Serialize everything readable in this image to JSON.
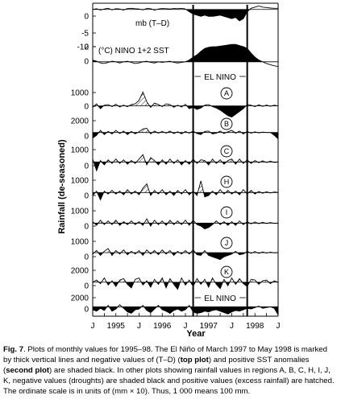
{
  "figure": {
    "y_axis_label": "Rainfall (de-seasoned)",
    "x_axis_label": "Year",
    "x_tick_labels": [
      "J",
      "1995",
      "J",
      "1996",
      "J",
      "1997",
      "J",
      "1998",
      "J"
    ],
    "el_nino_label": "EL NINO",
    "panels": [
      {
        "label": "mb (T–D)",
        "ticks": [
          "0",
          "-5",
          "-10"
        ]
      },
      {
        "label": "(°C) NINO 1+2 SST",
        "ticks": [
          "2",
          "0"
        ]
      },
      {
        "label": "A",
        "ticks": [
          "1000",
          "0"
        ]
      },
      {
        "label": "B",
        "ticks": [
          "2000",
          "0"
        ]
      },
      {
        "label": "C",
        "ticks": [
          "1000",
          "0"
        ]
      },
      {
        "label": "H",
        "ticks": [
          "1000",
          "0"
        ]
      },
      {
        "label": "I",
        "ticks": [
          "1000",
          "0"
        ]
      },
      {
        "label": "J",
        "ticks": [
          "1000",
          "0"
        ]
      },
      {
        "label": "K",
        "ticks": [
          "2000",
          "0"
        ]
      },
      {
        "label": "",
        "ticks": [
          "2000",
          "0"
        ]
      }
    ]
  },
  "caption": {
    "fig_label": "Fig. 7",
    "text1": ". Plots of monthly values for 1995–98. The El Niño of March 1997 to May 1998 is marked by thick vertical lines and negative values of (T–D) (",
    "bold1": "top plot",
    "text2": ") and positive SST anomalies (",
    "bold2": "second plot",
    "text3": ") are shaded black. In other plots showing rainfall values in regions A, B, C, H, I, J, K, negative values (droughts) are shaded black and positive values (excess rainfall) are hatched. The ordinate scale is in units of (mm × 10). Thus, 1 000 means 100 mm."
  },
  "chart_data": {
    "type": "area",
    "title": "",
    "xlabel": "Year",
    "ylabel": "Rainfall (de-seasoned)",
    "x_months": [
      "1995-01",
      "1995-02",
      "1995-03",
      "1995-04",
      "1995-05",
      "1995-06",
      "1995-07",
      "1995-08",
      "1995-09",
      "1995-10",
      "1995-11",
      "1995-12",
      "1996-01",
      "1996-02",
      "1996-03",
      "1996-04",
      "1996-05",
      "1996-06",
      "1996-07",
      "1996-08",
      "1996-09",
      "1996-10",
      "1996-11",
      "1996-12",
      "1997-01",
      "1997-02",
      "1997-03",
      "1997-04",
      "1997-05",
      "1997-06",
      "1997-07",
      "1997-08",
      "1997-09",
      "1997-10",
      "1997-11",
      "1997-12",
      "1998-01",
      "1998-02",
      "1998-03",
      "1998-04",
      "1998-05",
      "1998-06",
      "1998-07",
      "1998-08",
      "1998-09",
      "1998-10",
      "1998-11",
      "1998-12",
      "1999-01"
    ],
    "el_nino": {
      "start": "1997-03",
      "end": "1998-05"
    },
    "series": [
      {
        "name": "mb (T–D)",
        "ylim": [
          -12,
          2
        ],
        "values": [
          0,
          0.3,
          -0.3,
          0.2,
          0.5,
          -0.2,
          0.3,
          0.2,
          -0.3,
          0.4,
          0.5,
          0.3,
          0.2,
          -0.2,
          0.4,
          0.3,
          -0.3,
          0.2,
          0.4,
          0.3,
          0.2,
          0.4,
          0.3,
          0.5,
          0.2,
          -1,
          -2,
          -2.5,
          -3,
          -2.5,
          -3,
          -3,
          -2.8,
          -2.5,
          -3,
          -3.5,
          -4,
          -3.5,
          -5,
          -4,
          -1,
          0.5,
          1,
          1.5,
          1,
          0.8,
          0.6,
          0.5,
          0.5
        ]
      },
      {
        "name": "NINO 1+2 SST",
        "ylim": [
          -1,
          4
        ],
        "values": [
          0.3,
          0.1,
          -0.2,
          -0.3,
          -0.1,
          0.1,
          0,
          -0.2,
          0,
          0.1,
          -0.1,
          -0.3,
          -0.2,
          0,
          0.1,
          -0.1,
          -0.2,
          0,
          -0.1,
          0,
          0.1,
          -0.1,
          -0.2,
          -0.1,
          0,
          0.3,
          0.8,
          1.2,
          1.8,
          2.3,
          2.5,
          2.6,
          2.6,
          2.7,
          2.8,
          2.9,
          3,
          3,
          2.8,
          2.6,
          2.3,
          1.5,
          0.8,
          0.3,
          0,
          -0.3,
          -0.5,
          -0.7,
          -0.8
        ]
      },
      {
        "name": "A",
        "ylim": [
          -600,
          1600
        ],
        "values": [
          -100,
          150,
          -200,
          50,
          100,
          -50,
          120,
          -80,
          50,
          -60,
          100,
          150,
          400,
          1000,
          300,
          -100,
          200,
          100,
          -50,
          150,
          100,
          -100,
          50,
          -80,
          120,
          -200,
          -100,
          -250,
          -150,
          50,
          100,
          -50,
          -150,
          -300,
          -500,
          -700,
          -800,
          -600,
          -400,
          -200,
          100,
          50,
          -50,
          80,
          -40,
          60,
          -30,
          50,
          0
        ]
      },
      {
        "name": "B",
        "ylim": [
          -1300,
          2600
        ],
        "values": [
          -800,
          -400,
          300,
          -300,
          150,
          -200,
          300,
          -150,
          200,
          -300,
          150,
          -200,
          100,
          500,
          600,
          -200,
          200,
          -100,
          150,
          -100,
          200,
          -150,
          100,
          -200,
          150,
          -100,
          200,
          -150,
          -300,
          150,
          200,
          -200,
          -100,
          200,
          -150,
          100,
          300,
          -100,
          200,
          -200,
          150,
          -100,
          100,
          -50,
          60,
          0,
          0,
          -400,
          -900
        ]
      },
      {
        "name": "C",
        "ylim": [
          -700,
          1400
        ],
        "values": [
          200,
          -600,
          100,
          -200,
          150,
          -100,
          200,
          -100,
          150,
          -150,
          100,
          -100,
          200,
          500,
          -200,
          300,
          100,
          -200,
          150,
          -150,
          200,
          -100,
          150,
          -200,
          100,
          -150,
          200,
          -100,
          150,
          100,
          -200,
          200,
          -100,
          150,
          -150,
          100,
          200,
          -150,
          200,
          -100,
          150,
          -100,
          100,
          -50,
          80,
          -40,
          60,
          -30,
          0
        ]
      },
      {
        "name": "H",
        "ylim": [
          -700,
          1400
        ],
        "values": [
          -200,
          100,
          -500,
          100,
          -100,
          150,
          -100,
          100,
          -150,
          200,
          -100,
          100,
          -150,
          300,
          600,
          -200,
          150,
          -100,
          200,
          -150,
          100,
          -200,
          150,
          -100,
          200,
          -150,
          100,
          -200,
          800,
          -300,
          -200,
          100,
          -150,
          200,
          -100,
          150,
          -100,
          100,
          -150,
          200,
          -100,
          150,
          -100,
          80,
          -50,
          60,
          -30,
          40,
          0
        ]
      },
      {
        "name": "I",
        "ylim": [
          -700,
          1400
        ],
        "values": [
          100,
          -150,
          200,
          -100,
          150,
          -100,
          200,
          -150,
          100,
          -100,
          150,
          -100,
          100,
          -150,
          300,
          -200,
          200,
          -100,
          150,
          -150,
          200,
          -100,
          150,
          -100,
          200,
          -150,
          200,
          -100,
          -200,
          -400,
          -300,
          -100,
          150,
          -100,
          100,
          -150,
          100,
          -150,
          150,
          -100,
          100,
          -50,
          80,
          -40,
          60,
          -30,
          40,
          -20,
          0
        ]
      },
      {
        "name": "J",
        "ylim": [
          -700,
          1400
        ],
        "values": [
          -100,
          150,
          -200,
          100,
          300,
          -200,
          150,
          -100,
          200,
          -150,
          100,
          -100,
          150,
          -200,
          200,
          -100,
          150,
          -150,
          200,
          -100,
          150,
          -200,
          100,
          -100,
          150,
          -100,
          200,
          -150,
          -200,
          150,
          -200,
          -300,
          -400,
          -500,
          -300,
          -200,
          -100,
          100,
          -150,
          -100,
          100,
          -50,
          80,
          -50,
          50,
          -30,
          40,
          -20,
          0
        ]
      },
      {
        "name": "K",
        "ylim": [
          -1500,
          2800
        ],
        "values": [
          0,
          300,
          -200,
          600,
          -400,
          200,
          -600,
          300,
          500,
          -300,
          -800,
          400,
          600,
          -400,
          200,
          -700,
          400,
          -300,
          600,
          -800,
          500,
          -300,
          -1000,
          600,
          -400,
          300,
          -600,
          500,
          -300,
          400,
          -700,
          600,
          -300,
          -900,
          400,
          -500,
          600,
          -300,
          500,
          -200,
          -600,
          400,
          300,
          -300,
          200,
          300,
          -200,
          200,
          0
        ]
      },
      {
        "name": "",
        "ylim": [
          -1300,
          2600
        ],
        "values": [
          -400,
          -600,
          -200,
          -500,
          200,
          -600,
          -300,
          300,
          -200,
          -700,
          -900,
          -400,
          -300,
          200,
          -500,
          -800,
          -300,
          200,
          -400,
          -600,
          -900,
          -500,
          -300,
          -600,
          -400,
          200,
          -700,
          -900,
          -800,
          -600,
          -700,
          -500,
          -400,
          -600,
          -800,
          -1000,
          -700,
          -500,
          -600,
          -400,
          -200,
          -300,
          -100,
          100,
          -200,
          -100,
          0,
          -200,
          -1100
        ]
      }
    ]
  }
}
